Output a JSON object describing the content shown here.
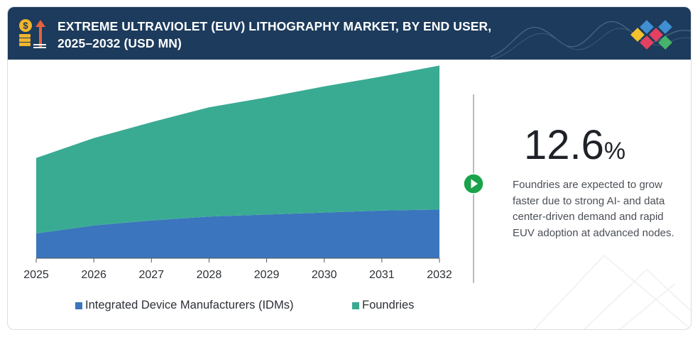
{
  "header": {
    "title_line1": "EXTREME ULTRAVIOLET (EUV) LITHOGRAPHY MARKET, BY END USER,",
    "title_line2": "2025–2032 (USD MN)",
    "logo_icon": "money-growth-icon",
    "brand_icon": "diamond-tiles-logo-icon"
  },
  "colors": {
    "header_bg": "#1d3b5c",
    "idm": "#3a75bd",
    "foundries": "#3aab93",
    "accent_green": "#1aa34a"
  },
  "callout": {
    "cagr_value": "12.6",
    "cagr_unit": "%",
    "description": "Foundries are expected to grow faster due to strong AI- and data center-driven demand and rapid EUV adoption at advanced nodes.",
    "icon": "play-arrow-icon"
  },
  "chart_data": {
    "type": "area",
    "stacked": true,
    "title": "EXTREME ULTRAVIOLET (EUV) LITHOGRAPHY MARKET, BY END USER, 2025–2032 (USD MN)",
    "x": [
      "2025",
      "2026",
      "2027",
      "2028",
      "2029",
      "2030",
      "2031",
      "2032"
    ],
    "series": [
      {
        "name": "Integrated Device Manufacturers (IDMs)",
        "color": "#3a75bd",
        "values": [
          25,
          33,
          38,
          42,
          44,
          46,
          48,
          49
        ]
      },
      {
        "name": "Foundries",
        "color": "#3aab93",
        "values": [
          76,
          88,
          99,
          110,
          118,
          127,
          135,
          145
        ]
      }
    ],
    "ylim": [
      0,
      250
    ],
    "y_axis_visible": false,
    "grid": false,
    "legend": "bottom"
  }
}
